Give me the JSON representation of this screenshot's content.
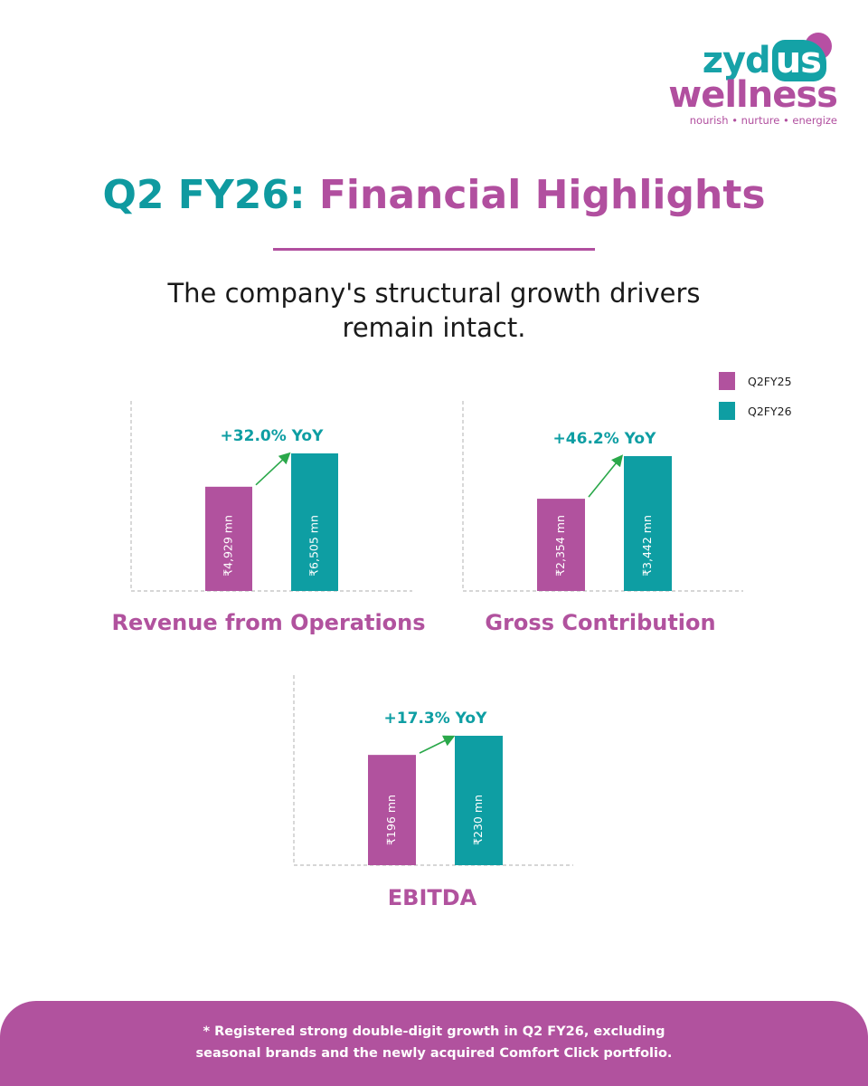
{
  "brand": {
    "name_part1": "zyd",
    "name_part2": "us",
    "name_line2": "wellness",
    "tagline": "nourish • nurture • energize"
  },
  "header": {
    "title_part1": "Q2 FY26:",
    "title_part2": "Financial Highlights",
    "subtitle_line1": "The company's structural growth drivers",
    "subtitle_line2": "remain intact."
  },
  "legend": [
    {
      "label": "Q2FY25",
      "color": "#b1529e"
    },
    {
      "label": "Q2FY26",
      "color": "#0e9ea3"
    }
  ],
  "colors": {
    "magenta": "#b1529e",
    "teal": "#0e9ea3",
    "arrow": "#2aa84a"
  },
  "chart_data": [
    {
      "type": "bar",
      "title": "Revenue from Operations",
      "categories": [
        "Q2FY25",
        "Q2FY26"
      ],
      "values": [
        4929,
        6505
      ],
      "unit": "₹ mn",
      "data_labels": [
        "₹4,929 mn",
        "₹6,505 mn"
      ],
      "growth_label": "+32.0% YoY"
    },
    {
      "type": "bar",
      "title": "Gross Contribution",
      "categories": [
        "Q2FY25",
        "Q2FY26"
      ],
      "values": [
        2354,
        3442
      ],
      "unit": "₹ mn",
      "data_labels": [
        "₹2,354 mn",
        "₹3,442 mn"
      ],
      "growth_label": "+46.2% YoY"
    },
    {
      "type": "bar",
      "title": "EBITDA",
      "categories": [
        "Q2FY25",
        "Q2FY26"
      ],
      "values": [
        196,
        230
      ],
      "unit": "₹ mn",
      "data_labels": [
        "₹196 mn",
        "₹230 mn"
      ],
      "growth_label": "+17.3% YoY"
    }
  ],
  "footer": {
    "note_line1": "* Registered strong double-digit growth in Q2 FY26, excluding",
    "note_line2": "seasonal brands and the newly acquired Comfort Click portfolio."
  }
}
